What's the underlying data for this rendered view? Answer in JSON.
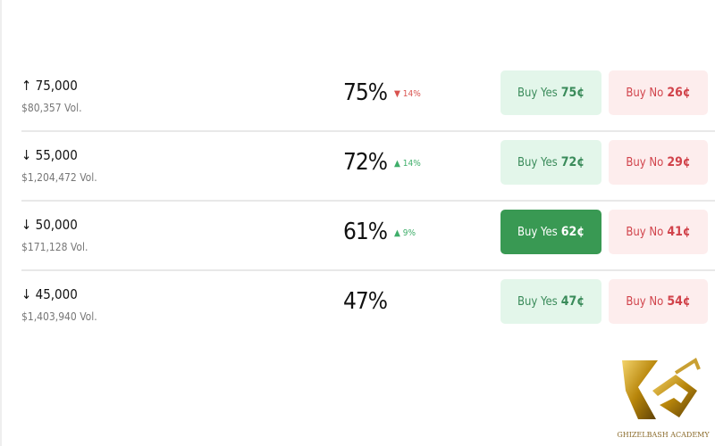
{
  "rows": [
    {
      "direction": "↑",
      "strike": "75,000",
      "volume": "$80,357 Vol.",
      "chance": "75%",
      "change": "▼ 14%",
      "change_color": "#d9534f",
      "yes_label": "Buy Yes",
      "yes_price": "75¢",
      "no_label": "Buy No",
      "no_price": "26¢",
      "yes_active": false
    },
    {
      "direction": "↓",
      "strike": "55,000",
      "volume": "$1,204,472 Vol.",
      "chance": "72%",
      "change": "▲ 14%",
      "change_color": "#3fae6a",
      "yes_label": "Buy Yes",
      "yes_price": "72¢",
      "no_label": "Buy No",
      "no_price": "29¢",
      "yes_active": false
    },
    {
      "direction": "↓",
      "strike": "50,000",
      "volume": "$171,128 Vol.",
      "chance": "61%",
      "change": "▲ 9%",
      "change_color": "#3fae6a",
      "yes_label": "Buy Yes",
      "yes_price": "62¢",
      "no_label": "Buy No",
      "no_price": "41¢",
      "yes_active": true
    },
    {
      "direction": "↓",
      "strike": "45,000",
      "volume": "$1,403,940 Vol.",
      "chance": "47%",
      "change": "",
      "change_color": "#3fae6a",
      "yes_label": "Buy Yes",
      "yes_price": "47¢",
      "no_label": "Buy No",
      "no_price": "54¢",
      "yes_active": false
    }
  ],
  "watermark": {
    "text": "GHIZELBASH ACADEMY"
  }
}
